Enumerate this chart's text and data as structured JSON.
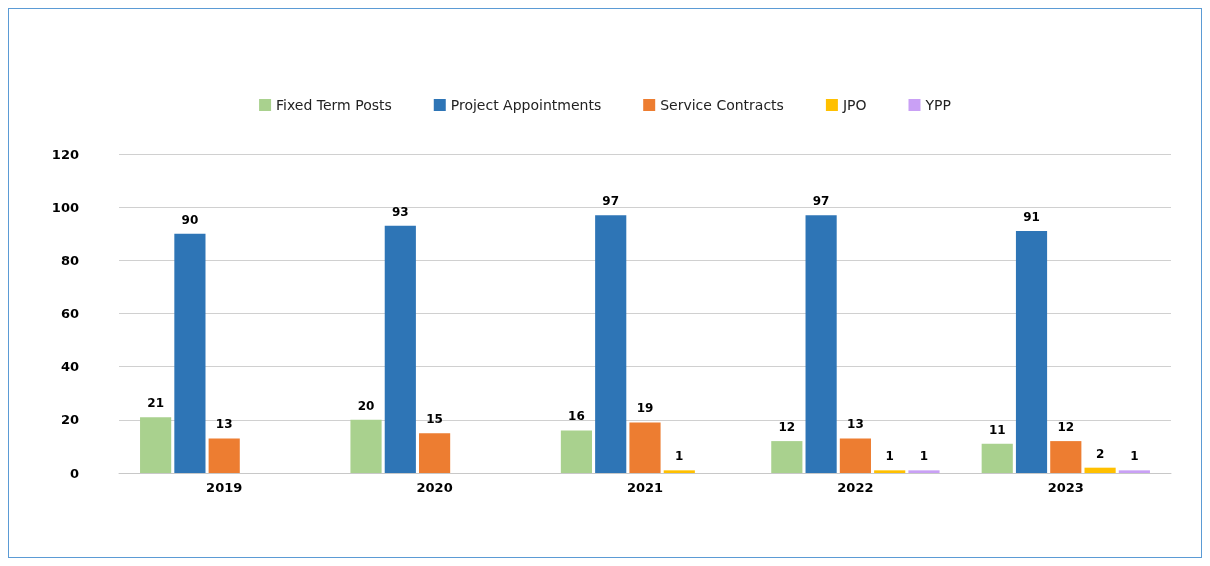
{
  "chart_data": {
    "type": "bar",
    "categories": [
      "2019",
      "2020",
      "2021",
      "2022",
      "2023"
    ],
    "series": [
      {
        "name": "Fixed Term Posts",
        "color": "#a9d18e",
        "values": [
          21,
          20,
          16,
          12,
          11
        ]
      },
      {
        "name": "Project Appointments",
        "color": "#2e75b6",
        "values": [
          90,
          93,
          97,
          97,
          91
        ]
      },
      {
        "name": "Service Contracts",
        "color": "#ed7d31",
        "values": [
          13,
          15,
          19,
          13,
          12
        ]
      },
      {
        "name": "JPO",
        "color": "#ffc000",
        "values": [
          null,
          null,
          1,
          1,
          2
        ]
      },
      {
        "name": "YPP",
        "color": "#c9a0f5",
        "values": [
          null,
          null,
          null,
          1,
          1
        ]
      }
    ],
    "ylim": [
      0,
      120
    ],
    "yticks": [
      0,
      20,
      40,
      60,
      80,
      100,
      120
    ],
    "grid": "y",
    "legend": "top",
    "data_labels": true
  }
}
